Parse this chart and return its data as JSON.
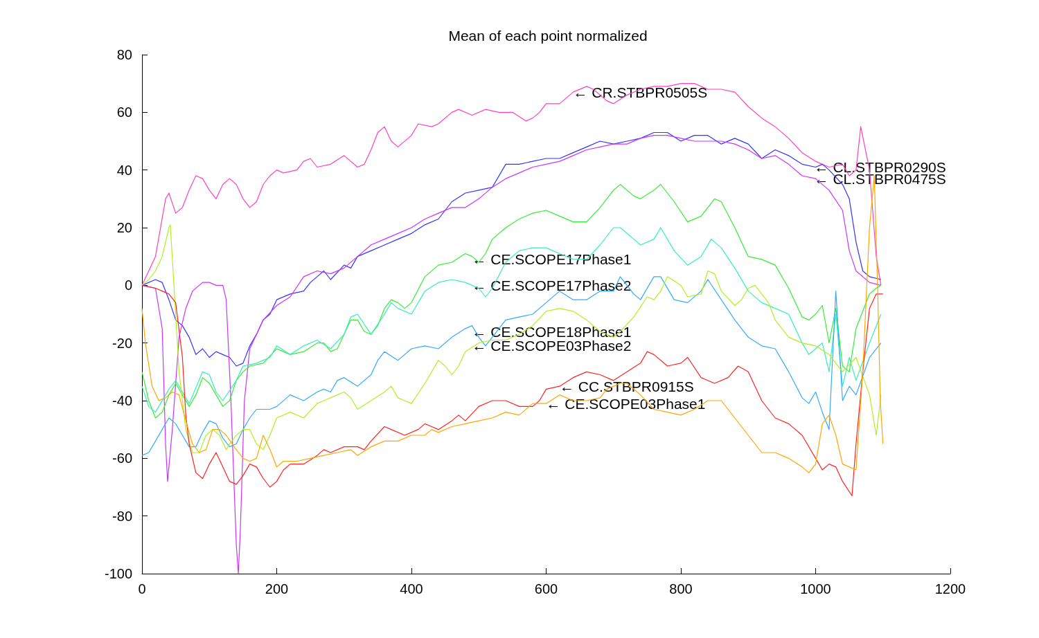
{
  "chart_data": {
    "type": "line",
    "title": "Mean of each point normalized",
    "xlim": [
      0,
      1200
    ],
    "ylim": [
      -100,
      80
    ],
    "xticks": [
      0,
      200,
      400,
      600,
      800,
      {
        "value": 1000,
        "label": "1000"
      },
      {
        "value": 1200,
        "label": "1200"
      }
    ],
    "yticks": [
      -100,
      -80,
      -60,
      -40,
      -20,
      0,
      20,
      40,
      60,
      80
    ],
    "grid": false,
    "marker": "none",
    "line_style": "solid",
    "annotations": [
      {
        "text": "← CR.STBPR0505S",
        "x": 640,
        "y": 67
      },
      {
        "text": "← CL.STBPR0290S",
        "x": 998,
        "y": 41
      },
      {
        "text": "← CL.STBPR0475S",
        "x": 998,
        "y": 37
      },
      {
        "text": "← CE.SCOPE17Phase1",
        "x": 490,
        "y": 9
      },
      {
        "text": "← CE.SCOPE17Phase2",
        "x": 490,
        "y": 0
      },
      {
        "text": "← CE.SCOPE18Phase1",
        "x": 490,
        "y": -16
      },
      {
        "text": "← CE.SCOPE03Phase2",
        "x": 490,
        "y": -21
      },
      {
        "text": "← CC.STBPR0915S",
        "x": 620,
        "y": -35
      },
      {
        "text": "← CE.SCOPE03Phase1",
        "x": 600,
        "y": -41
      }
    ],
    "series": [
      {
        "color": "#ff40c0",
        "x": [
          0,
          20,
          35,
          40,
          50,
          60,
          70,
          80,
          90,
          100,
          110,
          120,
          130,
          140,
          150,
          160,
          170,
          180,
          190,
          200,
          210,
          230,
          240,
          250,
          260,
          280,
          300,
          320,
          330,
          340,
          350,
          360,
          370,
          380,
          400,
          410,
          430,
          440,
          460,
          470,
          490,
          510,
          530,
          550,
          570,
          580,
          590,
          600,
          620,
          640,
          660,
          670,
          690,
          700,
          720,
          740,
          760,
          780,
          800,
          820,
          840,
          860,
          880,
          900,
          920,
          940,
          960,
          980,
          1000,
          1010,
          1020,
          1040,
          1050,
          1060,
          1067,
          1080,
          1090,
          1097
        ],
        "values": [
          0,
          10,
          30,
          32,
          25,
          27,
          33,
          38,
          37,
          33,
          30,
          35,
          37,
          35,
          30,
          27,
          29,
          35,
          38,
          40,
          39,
          40,
          43,
          44,
          41,
          42,
          45,
          41,
          42,
          47,
          53,
          55,
          50,
          48,
          52,
          56,
          55,
          56,
          60,
          61,
          59,
          61,
          60,
          60,
          57,
          58,
          60,
          63,
          63,
          67,
          69,
          68,
          64,
          63,
          66,
          68,
          69,
          69,
          70,
          70,
          68,
          68,
          67,
          62,
          58,
          55,
          51,
          46,
          43,
          42,
          41,
          42,
          38,
          40,
          55,
          40,
          10,
          0
        ]
      },
      {
        "color": "#3333ff",
        "x": [
          0,
          20,
          30,
          40,
          50,
          60,
          70,
          80,
          90,
          100,
          110,
          120,
          130,
          140,
          150,
          160,
          170,
          180,
          190,
          200,
          220,
          240,
          250,
          260,
          270,
          280,
          300,
          310,
          320,
          340,
          360,
          380,
          400,
          420,
          440,
          460,
          480,
          500,
          520,
          540,
          560,
          580,
          600,
          620,
          640,
          660,
          680,
          700,
          720,
          740,
          760,
          780,
          800,
          820,
          840,
          860,
          880,
          900,
          920,
          940,
          960,
          980,
          1000,
          1010,
          1020,
          1040,
          1050,
          1060,
          1070,
          1080,
          1097
        ],
        "values": [
          0,
          2,
          1,
          -5,
          -12,
          -14,
          -18,
          -24,
          -22,
          -25,
          -23,
          -24,
          -25,
          -28,
          -27,
          -21,
          -17,
          -12,
          -10,
          -5,
          -3,
          -2,
          1,
          3,
          5,
          2,
          7,
          6,
          10,
          12,
          14,
          16,
          18,
          21,
          23,
          29,
          32,
          33,
          34,
          42,
          42,
          43,
          44,
          44,
          46,
          48,
          50,
          49,
          50,
          51,
          53,
          53,
          50,
          52,
          52,
          49,
          51,
          49,
          44,
          47,
          45,
          42,
          41,
          42,
          40,
          35,
          30,
          15,
          5,
          3,
          2
        ]
      },
      {
        "color": "#cc33ff",
        "x": [
          0,
          20,
          30,
          35,
          38,
          45,
          55,
          65,
          75,
          90,
          100,
          110,
          120,
          125,
          132,
          140,
          143,
          146,
          152,
          160,
          170,
          180,
          200,
          220,
          240,
          260,
          280,
          300,
          320,
          340,
          360,
          380,
          400,
          420,
          440,
          460,
          480,
          500,
          520,
          540,
          560,
          580,
          600,
          620,
          640,
          660,
          680,
          700,
          720,
          740,
          760,
          780,
          800,
          820,
          840,
          860,
          880,
          900,
          920,
          940,
          960,
          980,
          1000,
          1020,
          1040,
          1050,
          1060,
          1080,
          1097
        ],
        "values": [
          0,
          -1,
          -15,
          -55,
          -68,
          -50,
          -18,
          -8,
          -2,
          1,
          1,
          0,
          0,
          -5,
          -40,
          -90,
          -100,
          -85,
          -40,
          -22,
          -17,
          -12,
          -7,
          -4,
          3,
          5,
          4,
          6,
          10,
          14,
          16,
          18,
          20,
          23,
          25,
          27,
          27,
          30,
          34,
          37,
          39,
          41,
          42,
          43,
          45,
          47,
          48,
          49,
          49,
          51,
          52,
          52,
          51,
          50,
          50,
          50,
          49,
          47,
          44,
          45,
          42,
          38,
          37,
          33,
          26,
          12,
          5,
          1,
          0
        ]
      },
      {
        "color": "#33ee33",
        "x": [
          0,
          10,
          20,
          30,
          40,
          50,
          60,
          70,
          80,
          90,
          100,
          110,
          120,
          130,
          140,
          150,
          160,
          180,
          200,
          210,
          220,
          240,
          260,
          270,
          280,
          290,
          300,
          310,
          320,
          330,
          340,
          350,
          360,
          370,
          380,
          390,
          400,
          420,
          440,
          460,
          480,
          490,
          500,
          510,
          520,
          540,
          560,
          580,
          600,
          620,
          640,
          660,
          680,
          700,
          710,
          730,
          740,
          760,
          770,
          790,
          810,
          830,
          850,
          860,
          880,
          900,
          920,
          940,
          960,
          980,
          990,
          1000,
          1010,
          1020,
          1030,
          1040,
          1050,
          1060,
          1080,
          1090,
          1097
        ],
        "values": [
          -30,
          -40,
          -46,
          -44,
          -38,
          -34,
          -38,
          -42,
          -38,
          -32,
          -34,
          -38,
          -42,
          -40,
          -33,
          -30,
          -28,
          -27,
          -22,
          -23,
          -24,
          -23,
          -20,
          -20,
          -23,
          -22,
          -17,
          -12,
          -12,
          -16,
          -17,
          -14,
          -8,
          -5,
          -6,
          -8,
          -6,
          3,
          7,
          8,
          11,
          10,
          8,
          11,
          16,
          20,
          23,
          25,
          26,
          24,
          22,
          22,
          27,
          33,
          35,
          31,
          30,
          33,
          35,
          29,
          22,
          24,
          30,
          29,
          20,
          10,
          9,
          7,
          -1,
          -11,
          -12,
          -10,
          -7,
          -20,
          -8,
          -28,
          -30,
          -15,
          -3,
          -1,
          0
        ]
      },
      {
        "color": "#33eebb",
        "x": [
          0,
          10,
          20,
          40,
          50,
          60,
          70,
          90,
          100,
          110,
          120,
          140,
          150,
          170,
          190,
          200,
          220,
          240,
          260,
          280,
          300,
          310,
          320,
          340,
          360,
          370,
          380,
          400,
          420,
          440,
          460,
          480,
          490,
          500,
          510,
          520,
          540,
          560,
          580,
          600,
          620,
          640,
          660,
          680,
          700,
          710,
          730,
          740,
          760,
          770,
          790,
          810,
          830,
          845,
          860,
          880,
          900,
          920,
          940,
          960,
          980,
          990,
          1010,
          1020,
          1030,
          1040,
          1050,
          1060,
          1080,
          1097
        ],
        "values": [
          -35,
          -42,
          -44,
          -36,
          -33,
          -37,
          -41,
          -30,
          -31,
          -37,
          -40,
          -33,
          -28,
          -27,
          -25,
          -21,
          -24,
          -21,
          -19,
          -22,
          -17,
          -11,
          -10,
          -17,
          -10,
          -6,
          -8,
          -10,
          -2,
          1,
          2,
          1,
          0,
          -1,
          -4,
          -1,
          8,
          12,
          13,
          13,
          11,
          9,
          9,
          14,
          20,
          20,
          16,
          14,
          16,
          20,
          12,
          7,
          10,
          16,
          13,
          6,
          -2,
          -6,
          -8,
          -10,
          -20,
          -24,
          -20,
          -30,
          -10,
          -35,
          -25,
          -33,
          -20,
          -10
        ]
      },
      {
        "color": "#33aaff",
        "x": [
          0,
          10,
          20,
          30,
          40,
          50,
          60,
          70,
          80,
          90,
          100,
          110,
          120,
          130,
          140,
          150,
          160,
          170,
          190,
          200,
          220,
          240,
          260,
          270,
          280,
          290,
          300,
          320,
          340,
          350,
          360,
          380,
          400,
          420,
          440,
          460,
          480,
          490,
          500,
          510,
          530,
          540,
          560,
          580,
          600,
          620,
          640,
          660,
          680,
          700,
          710,
          730,
          740,
          760,
          770,
          790,
          810,
          830,
          840,
          860,
          880,
          900,
          920,
          940,
          960,
          980,
          990,
          1000,
          1010,
          1020,
          1030,
          1040,
          1050,
          1060,
          1080,
          1097
        ],
        "values": [
          -59,
          -58,
          -54,
          -50,
          -46,
          -48,
          -52,
          -56,
          -56,
          -51,
          -47,
          -48,
          -53,
          -56,
          -55,
          -50,
          -46,
          -43,
          -43,
          -42,
          -38,
          -40,
          -37,
          -36,
          -37,
          -33,
          -32,
          -35,
          -31,
          -26,
          -23,
          -26,
          -22,
          -21,
          -22,
          -18,
          -15,
          -14,
          -18,
          -21,
          -15,
          -12,
          -11,
          -10,
          -6,
          -2,
          -5,
          -5,
          -2,
          -2,
          3,
          -3,
          -5,
          3,
          3,
          -5,
          -6,
          -2,
          2,
          -5,
          -12,
          -18,
          -21,
          -22,
          -30,
          -39,
          -41,
          -37,
          -44,
          -50,
          -2,
          -40,
          -35,
          -38,
          -25,
          -20
        ]
      },
      {
        "color": "#b0f020",
        "x": [
          0,
          10,
          20,
          30,
          40,
          42,
          50,
          55,
          65,
          75,
          85,
          95,
          105,
          115,
          125,
          130,
          140,
          150,
          160,
          170,
          180,
          190,
          200,
          220,
          240,
          260,
          270,
          290,
          300,
          310,
          320,
          340,
          360,
          370,
          380,
          390,
          400,
          420,
          440,
          450,
          460,
          470,
          480,
          500,
          520,
          540,
          560,
          580,
          600,
          620,
          640,
          660,
          680,
          700,
          710,
          730,
          750,
          760,
          770,
          780,
          800,
          810,
          830,
          840,
          850,
          860,
          880,
          890,
          900,
          910,
          930,
          940,
          960,
          980,
          1000,
          1020,
          1040,
          1060,
          1080,
          1090,
          1097
        ],
        "values": [
          0,
          2,
          5,
          10,
          20,
          21,
          -10,
          -30,
          -50,
          -58,
          -58,
          -52,
          -50,
          -52,
          -57,
          -55,
          -52,
          -50,
          -50,
          -55,
          -57,
          -52,
          -46,
          -44,
          -46,
          -41,
          -40,
          -38,
          -37,
          -39,
          -43,
          -40,
          -37,
          -35,
          -39,
          -40,
          -41,
          -34,
          -26,
          -28,
          -31,
          -28,
          -23,
          -20,
          -19,
          -19,
          -17,
          -14,
          -9,
          -8,
          -9,
          -12,
          -16,
          -18,
          -16,
          -11,
          -4,
          -5,
          -2,
          3,
          0,
          -4,
          -3,
          5,
          4,
          -2,
          -7,
          -5,
          -1,
          0,
          -6,
          -12,
          -18,
          -20,
          -21,
          -24,
          -30,
          -25,
          -38,
          -52,
          -38
        ]
      },
      {
        "color": "#ff2222",
        "x": [
          0,
          20,
          30,
          40,
          50,
          60,
          65,
          70,
          80,
          90,
          100,
          110,
          120,
          130,
          140,
          150,
          160,
          170,
          180,
          190,
          200,
          210,
          220,
          240,
          260,
          270,
          280,
          300,
          320,
          330,
          340,
          360,
          370,
          390,
          410,
          420,
          430,
          440,
          460,
          470,
          480,
          500,
          520,
          540,
          560,
          580,
          590,
          600,
          620,
          640,
          660,
          680,
          700,
          720,
          740,
          750,
          760,
          780,
          800,
          810,
          830,
          850,
          870,
          885,
          900,
          920,
          940,
          960,
          980,
          1000,
          1010,
          1020,
          1030,
          1040,
          1054,
          1060,
          1070,
          1080,
          1090,
          1100
        ],
        "values": [
          0,
          -1,
          -2,
          -3,
          -6,
          -25,
          -45,
          -55,
          -65,
          -67,
          -62,
          -58,
          -63,
          -68,
          -69,
          -66,
          -62,
          -63,
          -67,
          -70,
          -68,
          -64,
          -62,
          -62,
          -59,
          -57,
          -58,
          -56,
          -56,
          -57,
          -54,
          -49,
          -50,
          -52,
          -50,
          -48,
          -49,
          -50,
          -47,
          -45,
          -47,
          -42,
          -40,
          -40,
          -42,
          -42,
          -40,
          -36,
          -35,
          -32,
          -30,
          -31,
          -33,
          -30,
          -27,
          -23,
          -24,
          -28,
          -27,
          -25,
          -32,
          -34,
          -32,
          -28,
          -30,
          -40,
          -46,
          -48,
          -52,
          -60,
          -64,
          -62,
          -63,
          -68,
          -73,
          -55,
          -30,
          -8,
          -3,
          -3
        ]
      },
      {
        "color": "#ffa500",
        "x": [
          0,
          5,
          15,
          25,
          35,
          45,
          55,
          65,
          75,
          85,
          95,
          105,
          115,
          125,
          140,
          150,
          160,
          170,
          180,
          190,
          200,
          210,
          230,
          250,
          270,
          290,
          310,
          320,
          340,
          360,
          380,
          400,
          420,
          430,
          440,
          460,
          480,
          500,
          520,
          540,
          560,
          580,
          600,
          620,
          640,
          660,
          680,
          690,
          710,
          720,
          740,
          760,
          780,
          800,
          820,
          840,
          860,
          880,
          900,
          920,
          940,
          960,
          980,
          990,
          1000,
          1010,
          1020,
          1030,
          1040,
          1060,
          1070,
          1080,
          1087,
          1092,
          1096,
          1100
        ],
        "values": [
          -8,
          -20,
          -35,
          -40,
          -39,
          -37,
          -38,
          -47,
          -55,
          -58,
          -57,
          -50,
          -50,
          -52,
          -57,
          -60,
          -61,
          -60,
          -52,
          -57,
          -63,
          -61,
          -61,
          -60,
          -59,
          -58,
          -57,
          -59,
          -56,
          -54,
          -54,
          -52,
          -52,
          -50,
          -51,
          -49,
          -48,
          -47,
          -46,
          -44,
          -45,
          -41,
          -41,
          -38,
          -40,
          -40,
          -39,
          -36,
          -34,
          -34,
          -38,
          -43,
          -44,
          -45,
          -43,
          -40,
          -40,
          -46,
          -52,
          -58,
          -58,
          -60,
          -63,
          -65,
          -62,
          -48,
          -45,
          -52,
          -62,
          -64,
          -30,
          20,
          38,
          0,
          -40,
          -55
        ]
      }
    ]
  }
}
